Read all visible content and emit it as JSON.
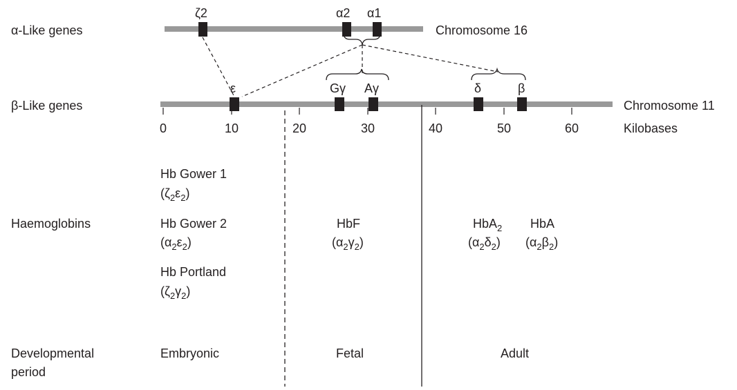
{
  "rows": {
    "alpha_like": "α-Like genes",
    "beta_like": "β-Like genes",
    "haemoglobins": "Haemoglobins",
    "developmental_line1": "Developmental",
    "developmental_line2": "period"
  },
  "chromosomes": {
    "alpha": {
      "label": "Chromosome 16",
      "genes": [
        {
          "id": "zeta2",
          "label": "ζ2"
        },
        {
          "id": "alpha2",
          "label": "α2"
        },
        {
          "id": "alpha1",
          "label": "α1"
        }
      ]
    },
    "beta": {
      "label": "Chromosome 11",
      "genes": [
        {
          "id": "epsilon",
          "label": "ε"
        },
        {
          "id": "G-gamma",
          "label": "Gγ"
        },
        {
          "id": "A-gamma",
          "label": "Aγ"
        },
        {
          "id": "delta",
          "label": "δ"
        },
        {
          "id": "beta",
          "label": "β"
        }
      ]
    }
  },
  "scale": {
    "unit_label": "Kilobases",
    "ticks": [
      "0",
      "10",
      "20",
      "30",
      "40",
      "50",
      "60"
    ]
  },
  "haemoglobins": {
    "gower1": {
      "name": "Hb Gower 1",
      "formula_open": "(",
      "a": "ζ",
      "a_sub": "2",
      "b": "ε",
      "b_sub": "2",
      "close": ")"
    },
    "gower2": {
      "name": "Hb Gower 2",
      "formula_open": "(",
      "a": "α",
      "a_sub": "2",
      "b": "ε",
      "b_sub": "2",
      "close": ")"
    },
    "portland": {
      "name": "Hb Portland",
      "formula_open": "(",
      "a": "ζ",
      "a_sub": "2",
      "b": "γ",
      "b_sub": "2",
      "close": ")"
    },
    "hbf": {
      "name": "HbF",
      "formula_open": "(",
      "a": "α",
      "a_sub": "2",
      "b": "γ",
      "b_sub": "2",
      "close": ")"
    },
    "hba2": {
      "name": "HbA",
      "name_sub": "2",
      "formula_open": "(",
      "a": "α",
      "a_sub": "2",
      "b": "δ",
      "b_sub": "2",
      "close": ")"
    },
    "hba": {
      "name": "HbA",
      "formula_open": "(",
      "a": "α",
      "a_sub": "2",
      "b": "β",
      "b_sub": "2",
      "close": ")"
    }
  },
  "periods": {
    "embryonic": "Embryonic",
    "fetal": "Fetal",
    "adult": "Adult"
  }
}
